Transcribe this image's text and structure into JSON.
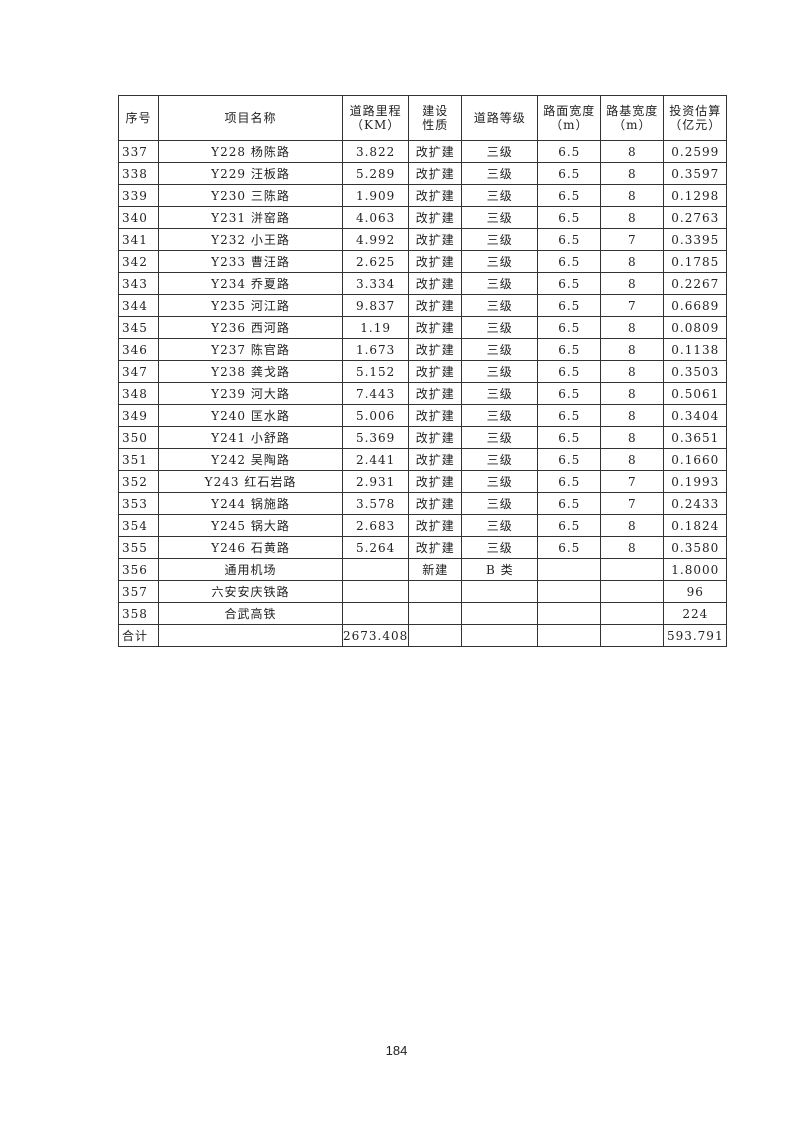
{
  "table": {
    "headers": [
      "序号",
      "项目名称",
      "道路里程\n（KM）",
      "建设\n性质",
      "道路等级",
      "路面宽度\n（m）",
      "路基宽度\n（m）",
      "投资估算\n（亿元）"
    ],
    "rows": [
      [
        "337",
        "Y228 杨陈路",
        "3.822",
        "改扩建",
        "三级",
        "6.5",
        "8",
        "0.2599"
      ],
      [
        "338",
        "Y229 汪板路",
        "5.289",
        "改扩建",
        "三级",
        "6.5",
        "8",
        "0.3597"
      ],
      [
        "339",
        "Y230 三陈路",
        "1.909",
        "改扩建",
        "三级",
        "6.5",
        "8",
        "0.1298"
      ],
      [
        "340",
        "Y231 洴窑路",
        "4.063",
        "改扩建",
        "三级",
        "6.5",
        "8",
        "0.2763"
      ],
      [
        "341",
        "Y232 小王路",
        "4.992",
        "改扩建",
        "三级",
        "6.5",
        "7",
        "0.3395"
      ],
      [
        "342",
        "Y233 曹汪路",
        "2.625",
        "改扩建",
        "三级",
        "6.5",
        "8",
        "0.1785"
      ],
      [
        "343",
        "Y234 乔夏路",
        "3.334",
        "改扩建",
        "三级",
        "6.5",
        "8",
        "0.2267"
      ],
      [
        "344",
        "Y235 河江路",
        "9.837",
        "改扩建",
        "三级",
        "6.5",
        "7",
        "0.6689"
      ],
      [
        "345",
        "Y236 西河路",
        "1.19",
        "改扩建",
        "三级",
        "6.5",
        "8",
        "0.0809"
      ],
      [
        "346",
        "Y237 陈官路",
        "1.673",
        "改扩建",
        "三级",
        "6.5",
        "8",
        "0.1138"
      ],
      [
        "347",
        "Y238 龚戈路",
        "5.152",
        "改扩建",
        "三级",
        "6.5",
        "8",
        "0.3503"
      ],
      [
        "348",
        "Y239 河大路",
        "7.443",
        "改扩建",
        "三级",
        "6.5",
        "8",
        "0.5061"
      ],
      [
        "349",
        "Y240 匡水路",
        "5.006",
        "改扩建",
        "三级",
        "6.5",
        "8",
        "0.3404"
      ],
      [
        "350",
        "Y241 小舒路",
        "5.369",
        "改扩建",
        "三级",
        "6.5",
        "8",
        "0.3651"
      ],
      [
        "351",
        "Y242 吴陶路",
        "2.441",
        "改扩建",
        "三级",
        "6.5",
        "8",
        "0.1660"
      ],
      [
        "352",
        "Y243 红石岩路",
        "2.931",
        "改扩建",
        "三级",
        "6.5",
        "7",
        "0.1993"
      ],
      [
        "353",
        "Y244 锅施路",
        "3.578",
        "改扩建",
        "三级",
        "6.5",
        "7",
        "0.2433"
      ],
      [
        "354",
        "Y245 锅大路",
        "2.683",
        "改扩建",
        "三级",
        "6.5",
        "8",
        "0.1824"
      ],
      [
        "355",
        "Y246 石黄路",
        "5.264",
        "改扩建",
        "三级",
        "6.5",
        "8",
        "0.3580"
      ],
      [
        "356",
        "通用机场",
        "",
        "新建",
        "B 类",
        "",
        "",
        "1.8000"
      ],
      [
        "357",
        "六安安庆铁路",
        "",
        "",
        "",
        "",
        "",
        "96"
      ],
      [
        "358",
        "合武高铁",
        "",
        "",
        "",
        "",
        "",
        "224"
      ],
      [
        "合计",
        "",
        "2673.408",
        "",
        "",
        "",
        "",
        "593.791"
      ]
    ]
  },
  "page_number": "184"
}
